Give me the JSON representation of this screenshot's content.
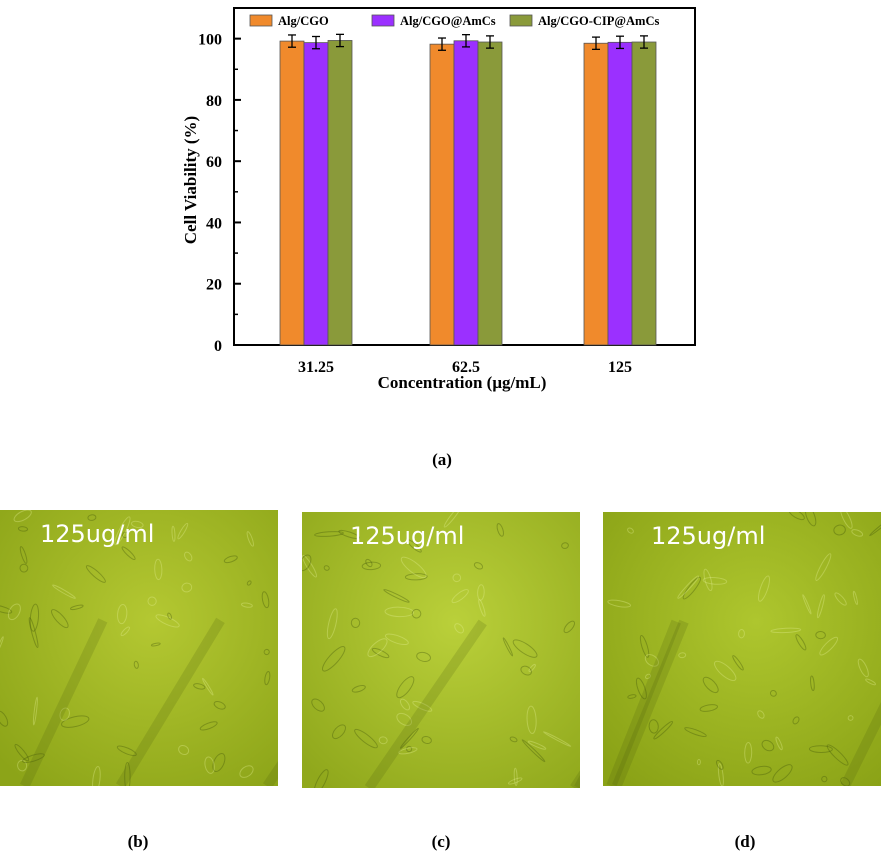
{
  "chart_data": {
    "type": "bar",
    "categories": [
      "31.25",
      "62.5",
      "125"
    ],
    "series": [
      {
        "name": "Alg/CGO",
        "color": "#F08A2C",
        "values": [
          99.2,
          98.2,
          98.5
        ],
        "errors": [
          2.0,
          2.0,
          2.0
        ]
      },
      {
        "name": "Alg/CGO@AmCs",
        "color": "#9B30FF",
        "values": [
          98.7,
          99.3,
          98.8
        ],
        "errors": [
          2.0,
          2.0,
          2.0
        ]
      },
      {
        "name": "Alg/CGO-CIP@AmCs",
        "color": "#8A9A3A",
        "values": [
          99.4,
          98.9,
          98.9
        ],
        "errors": [
          2.0,
          2.0,
          2.0
        ]
      }
    ],
    "xlabel": "Concentration (μg/mL)",
    "ylabel": "Cell Viability (%)",
    "ylim": [
      0,
      110
    ],
    "yticks": [
      0,
      20,
      40,
      60,
      80,
      100
    ],
    "legend_position": "top",
    "grid": false
  },
  "panel_labels": {
    "a": "(a)",
    "b": "(b)",
    "c": "(c)",
    "d": "(d)"
  },
  "micrographs": [
    {
      "caption": "125ug/ml",
      "base_color": "#8CA418",
      "light_color": "#B4C832"
    },
    {
      "caption": "125ug/ml",
      "base_color": "#90A81C",
      "light_color": "#BAD03A"
    },
    {
      "caption": "125ug/ml",
      "base_color": "#8AA216",
      "light_color": "#AEC62E"
    }
  ]
}
